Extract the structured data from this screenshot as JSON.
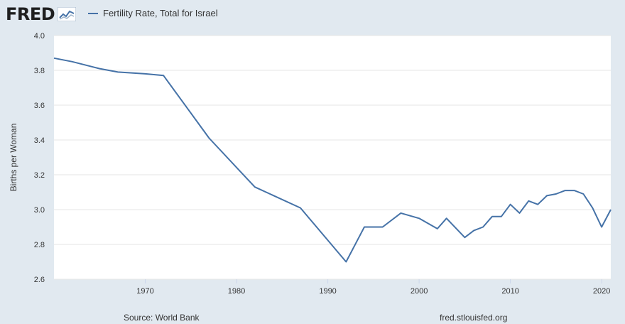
{
  "header": {
    "logo_text": "FRED",
    "logo_icon": "fred-chart-icon",
    "legend_label": "Fertility Rate, Total for Israel"
  },
  "footer": {
    "source": "Source: World Bank",
    "site": "fred.stlouisfed.org"
  },
  "colors": {
    "line": "#4572a7",
    "plot_background": "#ffffff",
    "page_background": "#e1e9f0",
    "grid": "#e6e6e6"
  },
  "chart_data": {
    "type": "line",
    "title": "",
    "xlabel": "",
    "ylabel": "Births per Woman",
    "xlim": [
      1960,
      2021
    ],
    "ylim": [
      2.6,
      4.0
    ],
    "x_ticks": [
      "1970",
      "1980",
      "1990",
      "2000",
      "2010",
      "2020"
    ],
    "y_ticks": [
      "2.6",
      "2.8",
      "3.0",
      "3.2",
      "3.4",
      "3.6",
      "3.8",
      "4.0"
    ],
    "grid": true,
    "legend_position": "top",
    "series": [
      {
        "name": "Fertility Rate, Total for Israel",
        "x": [
          1960,
          1962,
          1965,
          1967,
          1970,
          1972,
          1977,
          1982,
          1987,
          1992,
          1994,
          1996,
          1998,
          2000,
          2002,
          2003,
          2005,
          2006,
          2007,
          2008,
          2009,
          2010,
          2011,
          2012,
          2013,
          2014,
          2015,
          2016,
          2017,
          2018,
          2019,
          2020,
          2021
        ],
        "values": [
          3.87,
          3.85,
          3.81,
          3.79,
          3.78,
          3.77,
          3.41,
          3.13,
          3.01,
          2.7,
          2.9,
          2.9,
          2.98,
          2.95,
          2.89,
          2.95,
          2.84,
          2.88,
          2.9,
          2.96,
          2.96,
          3.03,
          2.98,
          3.05,
          3.03,
          3.08,
          3.09,
          3.11,
          3.11,
          3.09,
          3.01,
          2.9,
          3.0
        ]
      }
    ]
  }
}
